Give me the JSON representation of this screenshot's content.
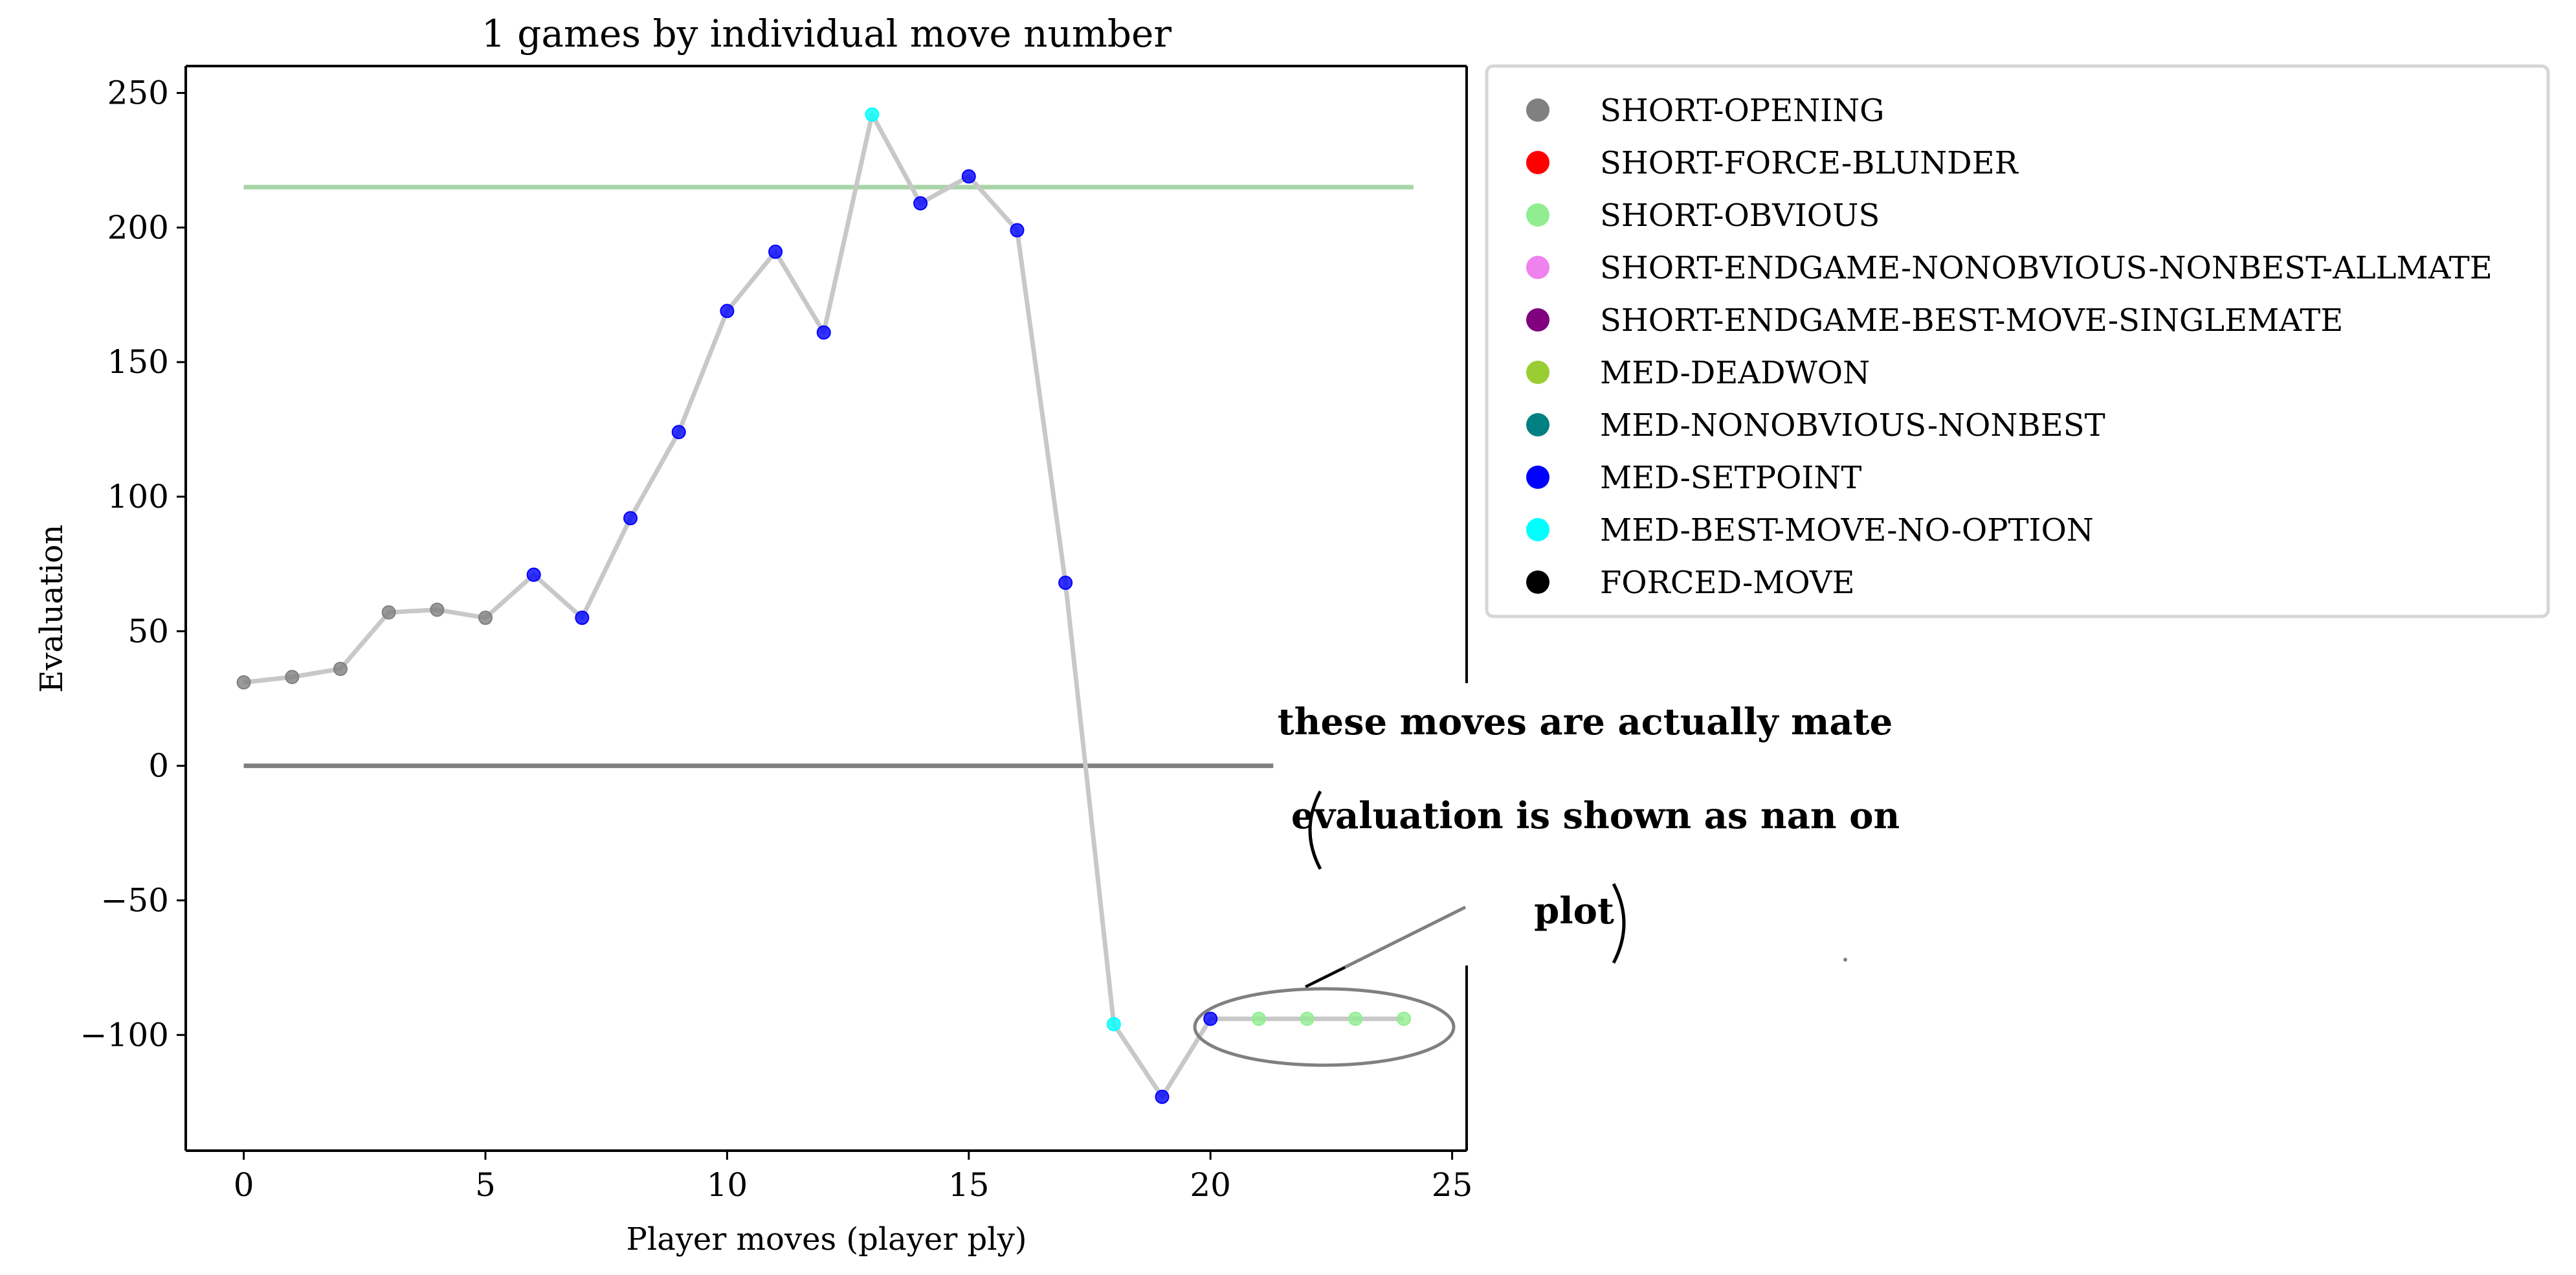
{
  "chart_data": {
    "type": "line",
    "title": "1 games by individual move number",
    "xlabel": "Player moves (player ply)",
    "ylabel": "Evaluation",
    "xlim": [
      -1.2,
      25.3
    ],
    "ylim": [
      -143,
      260
    ],
    "xticks": [
      0,
      5,
      10,
      15,
      20,
      25
    ],
    "yticks": [
      -100,
      -50,
      0,
      50,
      100,
      150,
      200,
      250
    ],
    "xtick_labels": [
      "0",
      "5",
      "10",
      "15",
      "20",
      "25"
    ],
    "ytick_labels": [
      "−100",
      "−50",
      "0",
      "50",
      "100",
      "150",
      "200",
      "250"
    ],
    "grid": false,
    "legend_position": "outside-right-top",
    "categories": [
      {
        "name": "SHORT-OPENING",
        "color": "#808080"
      },
      {
        "name": "SHORT-FORCE-BLUNDER",
        "color": "#ff0000"
      },
      {
        "name": "SHORT-OBVIOUS",
        "color": "#90ee90"
      },
      {
        "name": "SHORT-ENDGAME-NONOBVIOUS-NONBEST-ALLMATE",
        "color": "#ee82ee"
      },
      {
        "name": "SHORT-ENDGAME-BEST-MOVE-SINGLEMATE",
        "color": "#800080"
      },
      {
        "name": "MED-DEADWON",
        "color": "#9acd32"
      },
      {
        "name": "MED-NONOBVIOUS-NONBEST",
        "color": "#008080"
      },
      {
        "name": "MED-SETPOINT",
        "color": "#0000ff"
      },
      {
        "name": "MED-BEST-MOVE-NO-OPTION",
        "color": "#00ffff"
      },
      {
        "name": "FORCED-MOVE",
        "color": "#000000"
      }
    ],
    "series": [
      {
        "name": "evaluation",
        "line_color": "#c8c8c8",
        "points": [
          {
            "x": 0,
            "y": 31,
            "cat": 0
          },
          {
            "x": 1,
            "y": 33,
            "cat": 0
          },
          {
            "x": 2,
            "y": 36,
            "cat": 0
          },
          {
            "x": 3,
            "y": 57,
            "cat": 0
          },
          {
            "x": 4,
            "y": 58,
            "cat": 0
          },
          {
            "x": 5,
            "y": 55,
            "cat": 0
          },
          {
            "x": 6,
            "y": 71,
            "cat": 7
          },
          {
            "x": 7,
            "y": 55,
            "cat": 7
          },
          {
            "x": 8,
            "y": 92,
            "cat": 7
          },
          {
            "x": 9,
            "y": 124,
            "cat": 7
          },
          {
            "x": 10,
            "y": 169,
            "cat": 7
          },
          {
            "x": 11,
            "y": 191,
            "cat": 7
          },
          {
            "x": 12,
            "y": 161,
            "cat": 7
          },
          {
            "x": 13,
            "y": 242,
            "cat": 8
          },
          {
            "x": 14,
            "y": 209,
            "cat": 7
          },
          {
            "x": 15,
            "y": 219,
            "cat": 7
          },
          {
            "x": 16,
            "y": 199,
            "cat": 7
          },
          {
            "x": 17,
            "y": 68,
            "cat": 7
          },
          {
            "x": 18,
            "y": -96,
            "cat": 8
          },
          {
            "x": 19,
            "y": -123,
            "cat": 7
          },
          {
            "x": 20,
            "y": -94,
            "cat": 7
          },
          {
            "x": 21,
            "y": -94,
            "cat": 2
          },
          {
            "x": 22,
            "y": -94,
            "cat": 2
          },
          {
            "x": 23,
            "y": -94,
            "cat": 2
          },
          {
            "x": 24,
            "y": -94,
            "cat": 2
          }
        ]
      }
    ],
    "hlines": [
      {
        "y": 215,
        "x_from": 0,
        "x_to": 24.2,
        "color": "#a8d5a8"
      },
      {
        "y": 0,
        "x_from": 0,
        "x_to": 21.3,
        "color": "#808080"
      }
    ],
    "annotation": {
      "lines": [
        "these moves are actually mate",
        "evaluation is shown as nan on",
        "plot"
      ],
      "target_x_range": [
        20,
        24
      ],
      "target_y": -94
    }
  }
}
